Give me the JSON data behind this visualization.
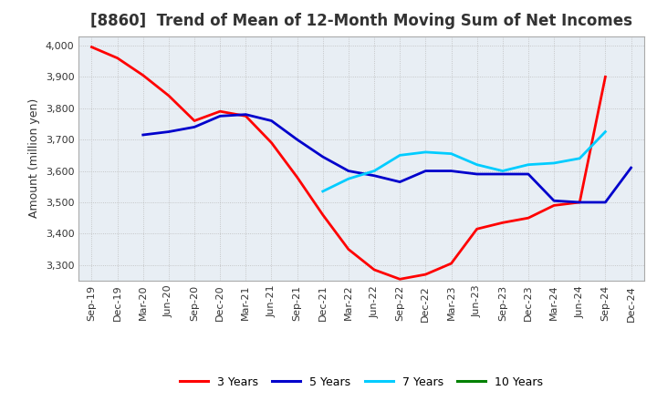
{
  "title": "[8860]  Trend of Mean of 12-Month Moving Sum of Net Incomes",
  "ylabel": "Amount (million yen)",
  "x_labels": [
    "Sep-19",
    "Dec-19",
    "Mar-20",
    "Jun-20",
    "Sep-20",
    "Dec-20",
    "Mar-21",
    "Jun-21",
    "Sep-21",
    "Dec-21",
    "Mar-22",
    "Jun-22",
    "Sep-22",
    "Dec-22",
    "Mar-23",
    "Jun-23",
    "Sep-23",
    "Dec-23",
    "Mar-24",
    "Jun-24",
    "Sep-24",
    "Dec-24"
  ],
  "ylim": [
    3250,
    4030
  ],
  "yticks": [
    3300,
    3400,
    3500,
    3600,
    3700,
    3800,
    3900,
    4000
  ],
  "series": {
    "3 Years": {
      "color": "#FF0000",
      "linewidth": 2.0,
      "data_x": [
        0,
        1,
        2,
        3,
        4,
        5,
        6,
        7,
        8,
        9,
        10,
        11,
        12,
        13,
        14,
        15,
        16,
        17,
        18,
        19,
        20
      ],
      "data_y": [
        3995,
        3960,
        3905,
        3840,
        3760,
        3790,
        3775,
        3690,
        3580,
        3460,
        3350,
        3285,
        3255,
        3270,
        3305,
        3415,
        3435,
        3450,
        3490,
        3500,
        3900
      ]
    },
    "5 Years": {
      "color": "#0000CC",
      "linewidth": 2.0,
      "data_x": [
        2,
        3,
        4,
        5,
        6,
        7,
        8,
        9,
        10,
        11,
        12,
        13,
        14,
        15,
        16,
        17,
        18,
        19,
        20,
        21
      ],
      "data_y": [
        3715,
        3725,
        3740,
        3775,
        3780,
        3760,
        3700,
        3645,
        3600,
        3585,
        3565,
        3600,
        3600,
        3590,
        3590,
        3590,
        3505,
        3500,
        3500,
        3610
      ]
    },
    "7 Years": {
      "color": "#00CCFF",
      "linewidth": 2.0,
      "data_x": [
        9,
        10,
        11,
        12,
        13,
        14,
        15,
        16,
        17,
        18,
        19,
        20
      ],
      "data_y": [
        3535,
        3575,
        3600,
        3650,
        3660,
        3655,
        3620,
        3600,
        3620,
        3625,
        3640,
        3725
      ]
    },
    "10 Years": {
      "color": "#008000",
      "linewidth": 2.0,
      "data_x": [],
      "data_y": []
    }
  },
  "legend_entries": [
    "3 Years",
    "5 Years",
    "7 Years",
    "10 Years"
  ],
  "legend_colors": [
    "#FF0000",
    "#0000CC",
    "#00CCFF",
    "#008000"
  ],
  "plot_bg_color": "#E8EEF4",
  "fig_bg_color": "#FFFFFF",
  "grid_color": "#BBBBBB",
  "title_fontsize": 12,
  "axis_fontsize": 9,
  "tick_fontsize": 8
}
